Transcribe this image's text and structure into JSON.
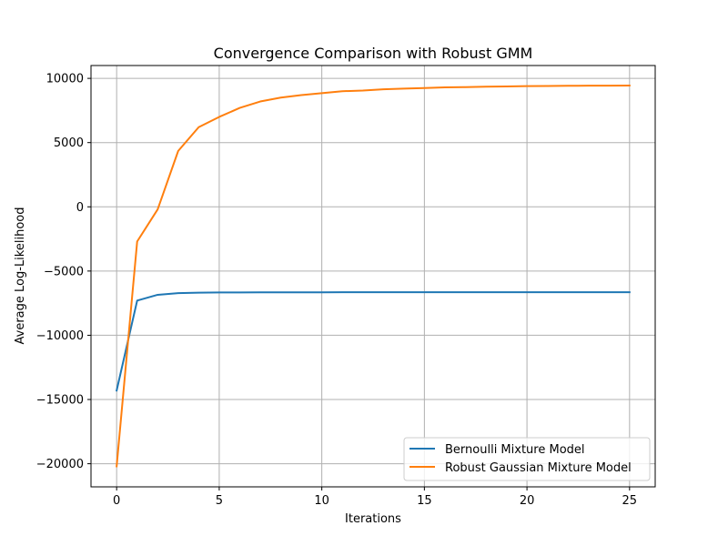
{
  "chart_data": {
    "type": "line",
    "title": "Convergence Comparison with Robust GMM",
    "xlabel": "Iterations",
    "ylabel": "Average Log-Likelihood",
    "xlim": [
      -1.25,
      26.25
    ],
    "ylim": [
      -21800,
      11000
    ],
    "xticks": [
      0,
      5,
      10,
      15,
      20,
      25
    ],
    "yticks": [
      -20000,
      -15000,
      -10000,
      -5000,
      0,
      5000,
      10000
    ],
    "xtick_labels": [
      "0",
      "5",
      "10",
      "15",
      "20",
      "25"
    ],
    "ytick_labels": [
      "−20000",
      "−15000",
      "−10000",
      "−5000",
      "0",
      "5000",
      "10000"
    ],
    "grid": true,
    "legend_position": "lower-right",
    "series": [
      {
        "name": "Bernoulli Mixture Model",
        "color": "#1f77b4",
        "x": [
          0,
          1,
          2,
          3,
          4,
          5,
          6,
          7,
          8,
          9,
          10,
          11,
          12,
          13,
          14,
          15,
          16,
          17,
          18,
          19,
          20,
          21,
          22,
          23,
          24,
          25
        ],
        "y": [
          -14300,
          -7300,
          -6850,
          -6720,
          -6680,
          -6670,
          -6665,
          -6660,
          -6658,
          -6655,
          -6653,
          -6652,
          -6651,
          -6650,
          -6650,
          -6649,
          -6649,
          -6648,
          -6648,
          -6648,
          -6647,
          -6647,
          -6647,
          -6647,
          -6647,
          -6647
        ]
      },
      {
        "name": "Robust Gaussian Mixture Model",
        "color": "#ff7f0e",
        "x": [
          0,
          1,
          2,
          3,
          4,
          5,
          6,
          7,
          8,
          9,
          10,
          11,
          12,
          13,
          14,
          15,
          16,
          17,
          18,
          19,
          20,
          21,
          22,
          23,
          24,
          25
        ],
        "y": [
          -20200,
          -2700,
          -200,
          4350,
          6200,
          7000,
          7700,
          8200,
          8500,
          8700,
          8850,
          9000,
          9050,
          9150,
          9200,
          9250,
          9300,
          9320,
          9350,
          9370,
          9400,
          9410,
          9420,
          9430,
          9430,
          9440
        ]
      }
    ]
  }
}
